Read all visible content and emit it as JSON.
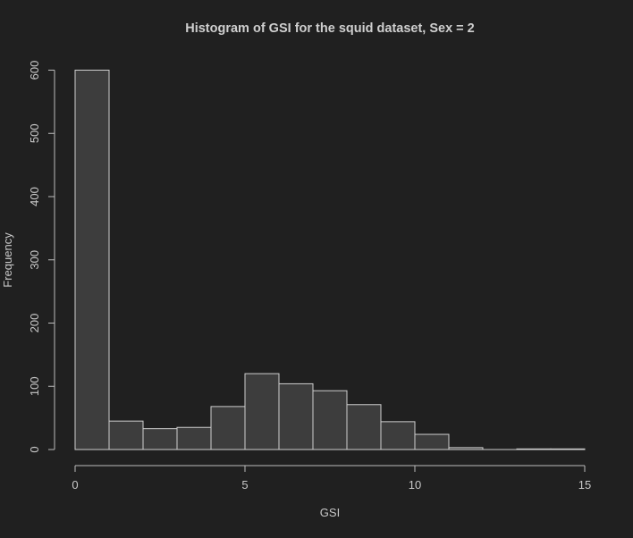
{
  "chart_data": {
    "type": "bar",
    "title": "Histogram of GSI for the squid dataset, Sex = 2",
    "xlabel": "GSI",
    "ylabel": "Frequency",
    "bins": [
      {
        "start": 0,
        "end": 1,
        "count": 600
      },
      {
        "start": 1,
        "end": 2,
        "count": 45
      },
      {
        "start": 2,
        "end": 3,
        "count": 33
      },
      {
        "start": 3,
        "end": 4,
        "count": 35
      },
      {
        "start": 4,
        "end": 5,
        "count": 68
      },
      {
        "start": 5,
        "end": 6,
        "count": 120
      },
      {
        "start": 6,
        "end": 7,
        "count": 104
      },
      {
        "start": 7,
        "end": 8,
        "count": 93
      },
      {
        "start": 8,
        "end": 9,
        "count": 71
      },
      {
        "start": 9,
        "end": 10,
        "count": 44
      },
      {
        "start": 10,
        "end": 11,
        "count": 24
      },
      {
        "start": 11,
        "end": 12,
        "count": 3
      },
      {
        "start": 12,
        "end": 13,
        "count": 0
      },
      {
        "start": 13,
        "end": 14,
        "count": 1
      },
      {
        "start": 14,
        "end": 15,
        "count": 1
      }
    ],
    "xlim": [
      0,
      15
    ],
    "ylim": [
      0,
      600
    ],
    "xticks": [
      0,
      5,
      10,
      15
    ],
    "yticks": [
      0,
      100,
      200,
      300,
      400,
      500,
      600
    ],
    "grid": false,
    "colors": {
      "background": "#202020",
      "bar_fill": "#3d3d3d",
      "bar_stroke": "#cfcfcf",
      "axis": "#bdbdbd",
      "text": "#c8c8c8"
    }
  }
}
